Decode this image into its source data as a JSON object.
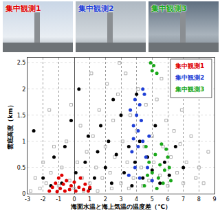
{
  "photos": {
    "labels": [
      "集中観測1",
      "集中観測2",
      "集中観測3"
    ],
    "colors": [
      "#e00000",
      "#1f3fd6",
      "#1aa81a"
    ]
  },
  "chart_data": {
    "type": "scatter",
    "xlabel": "海面水温と海上気温の温度差（℃）",
    "ylabel": "雲底高度（km）",
    "xlim": [
      -3,
      9
    ],
    "xticks": [
      -3,
      -2,
      -1,
      0,
      1,
      2,
      3,
      4,
      5,
      6,
      7,
      8,
      9
    ],
    "ylim": [
      0,
      2.6
    ],
    "yticks": [
      0,
      0.5,
      1,
      1.5,
      2,
      2.5
    ],
    "grid": true,
    "legend": "top right",
    "series": [
      {
        "color": "#b0b0b0",
        "marker": "square-open",
        "x": [
          -2.8,
          -2.5,
          -2.2,
          -2,
          -1.8,
          -1.5,
          -1.3,
          -1,
          -0.8,
          -0.5,
          -0.3,
          0,
          0.2,
          0.4,
          0.5,
          0.8,
          1,
          1.2,
          1.4,
          1.6,
          1.8,
          2,
          2.1,
          2.3,
          2.5,
          2.6,
          2.8,
          3,
          3.1,
          3.3,
          3.4,
          3.6,
          3.8,
          4,
          4.1,
          4.3,
          4.5,
          4.6,
          4.8,
          5,
          5.1,
          5.3,
          5.5,
          5.7,
          5.9,
          6,
          6.2,
          6.4,
          6.6,
          6.8,
          7,
          7.2,
          7.5,
          7.8,
          8,
          8.3,
          8.6,
          1.5,
          2.4,
          0.6,
          3.5,
          4.4,
          -1.6,
          -0.2,
          1.1,
          2.9,
          5.6,
          6.9
        ],
        "y": [
          0.05,
          0.3,
          0.1,
          0.6,
          0.2,
          0.4,
          0.9,
          0.15,
          0.5,
          1.0,
          0.25,
          0.1,
          0.6,
          1.3,
          0.3,
          0.8,
          0.2,
          1.1,
          0.5,
          1.6,
          0.3,
          0.9,
          2.1,
          0.4,
          1.4,
          0.7,
          1.9,
          0.2,
          1.0,
          2.3,
          0.6,
          1.5,
          0.3,
          1.2,
          2.0,
          0.5,
          0.9,
          1.7,
          0.25,
          1.1,
          0.6,
          1.8,
          0.35,
          0.9,
          1.4,
          0.15,
          0.7,
          1.2,
          0.4,
          0.95,
          0.2,
          0.6,
          1.1,
          0.3,
          0.5,
          0.2,
          0.8,
          0.05,
          0.1,
          0.05,
          0.1,
          0.15,
          1.6,
          1.7,
          2.3,
          2.5,
          2.2,
          1.6
        ]
      },
      {
        "color": "#000000",
        "marker": "circle",
        "x": [
          -2.6,
          -2,
          -1.3,
          -0.8,
          -0.6,
          -0.2,
          0.1,
          0.3,
          0.7,
          0.9,
          1.3,
          1.5,
          1.7,
          2,
          2.2,
          2.4,
          2.7,
          3,
          3.2,
          3.5,
          3.7,
          3.9,
          4.2,
          4.4,
          4.7,
          5,
          5.2,
          5.5,
          5.8,
          6.1,
          6.5,
          7,
          -1.5,
          1,
          2.5,
          4
        ],
        "y": [
          1.2,
          0.3,
          0.7,
          0.2,
          0.9,
          1.4,
          0.4,
          2.0,
          0.6,
          1.1,
          0.3,
          0.8,
          1.3,
          0.5,
          1.0,
          0.2,
          0.75,
          1.5,
          0.4,
          0.9,
          0.15,
          0.6,
          1.0,
          0.3,
          0.7,
          0.45,
          1.3,
          0.2,
          0.6,
          0.35,
          0.9,
          0.5,
          0.15,
          0.1,
          1.8,
          1.9
        ]
      },
      {
        "name": "集中観測1",
        "color": "#e00000",
        "marker": "circle",
        "x": [
          -1.6,
          -1.4,
          -1.2,
          -1.1,
          -1,
          -0.9,
          -0.7,
          -0.6,
          -0.5,
          -0.3,
          -0.2,
          0,
          0.1,
          0.3,
          0.4,
          0.6,
          0.7,
          0.9,
          1,
          -0.8
        ],
        "y": [
          0.05,
          0.12,
          0.2,
          0.04,
          0.3,
          0.1,
          0.18,
          0.05,
          0.25,
          0.08,
          0.15,
          0.22,
          0.05,
          0.12,
          0.3,
          0.08,
          0.18,
          0.05,
          0.12,
          0.35
        ]
      },
      {
        "name": "集中観測2",
        "color": "#1f3fd6",
        "marker": "circle",
        "x": [
          3.6,
          3.8,
          3.9,
          4,
          4.1,
          4.2,
          4.3,
          4.4,
          4.5,
          3.7,
          3.9,
          4.2,
          4.6,
          4.8,
          3.5,
          4.1,
          4.7,
          5,
          4.4,
          3.8
        ],
        "y": [
          1.6,
          1.3,
          1.8,
          1.5,
          1.2,
          1.7,
          1.4,
          1.0,
          1.9,
          0.8,
          0.5,
          0.3,
          0.7,
          1.1,
          0.35,
          0.9,
          0.5,
          0.25,
          2.0,
          1.05
        ]
      },
      {
        "name": "集中観測3",
        "color": "#1aa81a",
        "marker": "circle",
        "x": [
          4.9,
          5.0,
          5.1,
          5.3,
          4.6,
          4.8,
          5,
          5.2,
          5.4,
          5.5,
          5.7,
          5.8,
          6,
          6.2,
          4.5,
          5.3,
          5.9,
          4.7,
          5.6,
          6.1
        ],
        "y": [
          2.5,
          2.35,
          2.45,
          2.3,
          0.9,
          0.6,
          0.4,
          0.75,
          0.3,
          0.55,
          0.2,
          0.45,
          0.7,
          0.25,
          0.15,
          0.1,
          0.85,
          0.35,
          0.95,
          0.5
        ]
      }
    ]
  }
}
